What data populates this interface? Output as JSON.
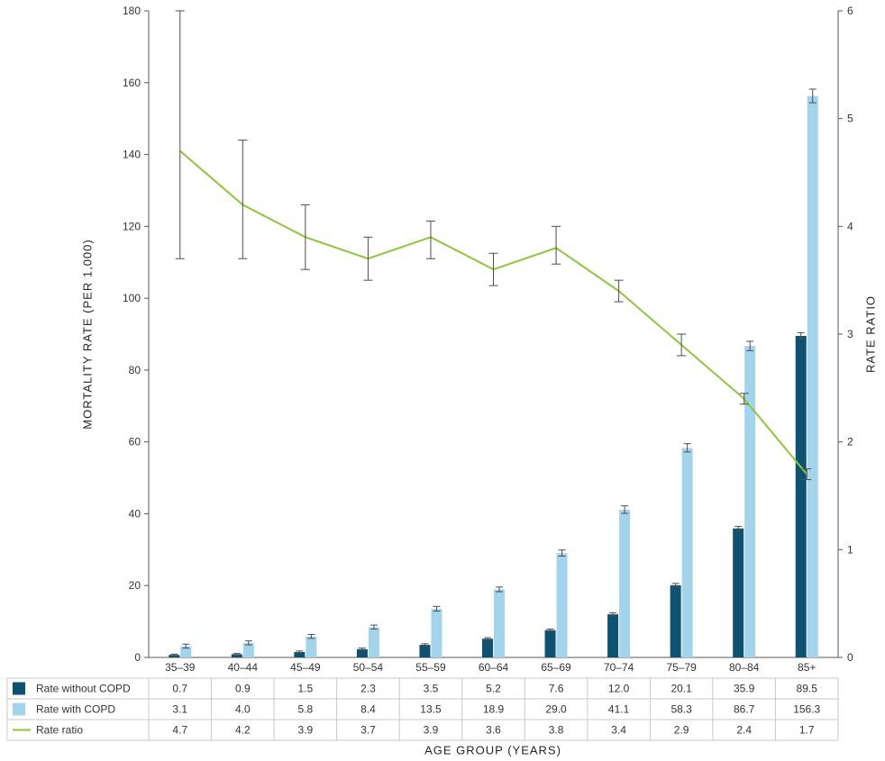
{
  "colors": {
    "without_copd": "#0e5170",
    "with_copd": "#a3d4ec",
    "rate_ratio": "#8dc63f",
    "error_bar": "#4d4d4d",
    "axis": "#595959",
    "table_line": "#c9c9c9",
    "text": "#333333"
  },
  "chart_data": {
    "type": "bar",
    "subtype": "grouped-bars-with-line-overlay",
    "grid": false,
    "legend_position": "table-left",
    "categories": [
      "35–39",
      "40–44",
      "45–49",
      "50–54",
      "55–59",
      "60–64",
      "65–69",
      "70–74",
      "75–79",
      "80–84",
      "85+"
    ],
    "series": [
      {
        "name": "Rate without COPD",
        "type": "bar",
        "axis": "left",
        "color": "#0e5170",
        "values": [
          0.7,
          0.9,
          1.5,
          2.3,
          3.5,
          5.2,
          7.6,
          12.0,
          20.1,
          35.9,
          89.5
        ],
        "display": [
          "0.7",
          "0.9",
          "1.5",
          "2.3",
          "3.5",
          "5.2",
          "7.6",
          "12.0",
          "20.1",
          "35.9",
          "89.5"
        ],
        "ci": [
          [
            0.5,
            0.9
          ],
          [
            0.7,
            1.1
          ],
          [
            1.3,
            1.8
          ],
          [
            2.0,
            2.6
          ],
          [
            3.2,
            3.8
          ],
          [
            4.9,
            5.5
          ],
          [
            7.3,
            7.9
          ],
          [
            11.6,
            12.4
          ],
          [
            19.6,
            20.6
          ],
          [
            35.3,
            36.5
          ],
          [
            88.6,
            90.4
          ]
        ]
      },
      {
        "name": "Rate with COPD",
        "type": "bar",
        "axis": "left",
        "color": "#a3d4ec",
        "values": [
          3.1,
          4.0,
          5.8,
          8.4,
          13.5,
          18.9,
          29.0,
          41.1,
          58.3,
          86.7,
          156.3
        ],
        "display": [
          "3.1",
          "4.0",
          "5.8",
          "8.4",
          "13.5",
          "18.9",
          "29.0",
          "41.1",
          "58.3",
          "86.7",
          "156.3"
        ],
        "ci": [
          [
            2.6,
            3.7
          ],
          [
            3.5,
            4.6
          ],
          [
            5.3,
            6.4
          ],
          [
            7.9,
            9.0
          ],
          [
            12.9,
            14.2
          ],
          [
            18.3,
            19.6
          ],
          [
            28.2,
            29.9
          ],
          [
            40.1,
            42.2
          ],
          [
            57.2,
            59.5
          ],
          [
            85.4,
            88.0
          ],
          [
            154.4,
            158.2
          ]
        ]
      },
      {
        "name": "Rate ratio",
        "type": "line",
        "axis": "right",
        "color": "#8dc63f",
        "values": [
          4.7,
          4.2,
          3.9,
          3.7,
          3.9,
          3.6,
          3.8,
          3.4,
          2.9,
          2.4,
          1.7
        ],
        "display": [
          "4.7",
          "4.2",
          "3.9",
          "3.7",
          "3.9",
          "3.6",
          "3.8",
          "3.4",
          "2.9",
          "2.4",
          "1.7"
        ],
        "ci": [
          [
            3.7,
            6.0
          ],
          [
            3.7,
            4.8
          ],
          [
            3.6,
            4.2
          ],
          [
            3.5,
            3.9
          ],
          [
            3.7,
            4.05
          ],
          [
            3.45,
            3.75
          ],
          [
            3.65,
            4.0
          ],
          [
            3.3,
            3.5
          ],
          [
            2.8,
            3.0
          ],
          [
            2.35,
            2.45
          ],
          [
            1.65,
            1.75
          ]
        ]
      }
    ],
    "left_axis": {
      "label": "MORTALITY RATE (PER 1,000)",
      "min": 0,
      "max": 180,
      "step": 20
    },
    "right_axis": {
      "label": "RATE RATIO",
      "min": 0,
      "max": 6,
      "step": 1
    },
    "x_axis": {
      "label": "AGE GROUP (YEARS)"
    }
  }
}
